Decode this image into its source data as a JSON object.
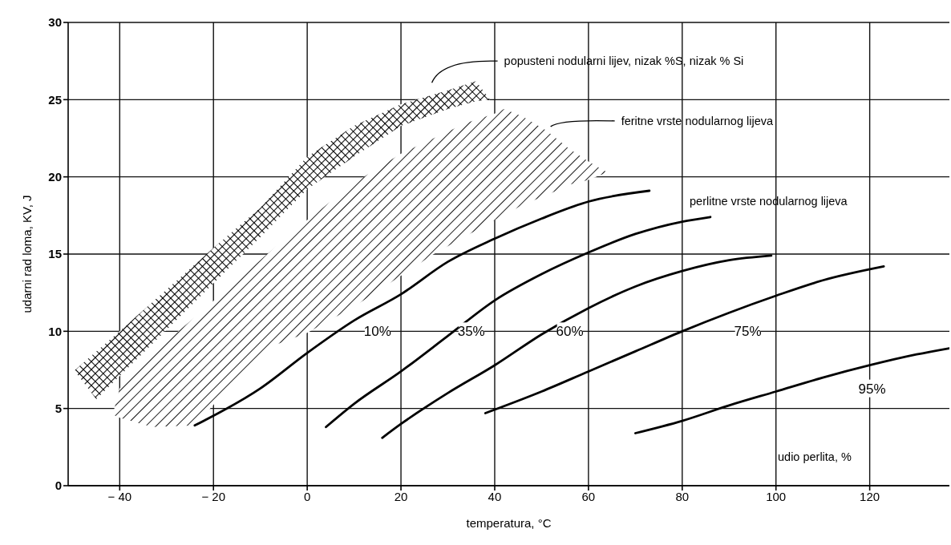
{
  "chart_data": {
    "type": "line",
    "xlabel": "temperatura, °C",
    "ylabel": "udarni rad loma, KV, J",
    "xlim": [
      -51,
      137
    ],
    "ylim": [
      0,
      30
    ],
    "xticks": [
      {
        "value": -40,
        "label": "− 40"
      },
      {
        "value": -20,
        "label": "− 20"
      },
      0,
      20,
      40,
      60,
      80,
      100,
      120
    ],
    "yticks": [
      0,
      5,
      10,
      15,
      20,
      25,
      30
    ],
    "grid": true,
    "marker": "none",
    "line_style": "solid",
    "series": [
      {
        "type": "area",
        "name": "popusteni nodularni lijev, nizak %S, nizak % Si",
        "color": "#000000",
        "x": [
          -49.5,
          -45,
          -40,
          -30,
          -20,
          -10,
          0,
          10,
          20,
          30,
          36,
          39
        ],
        "values": [
          null,
          null,
          null,
          null,
          null,
          null,
          null,
          null,
          null,
          null,
          null,
          null
        ],
        "upper": [
          7.5,
          8.7,
          10,
          12.7,
          15.4,
          18,
          21.3,
          23.3,
          24.7,
          25.6,
          26.2,
          25
        ],
        "lower": [
          7.4,
          5.6,
          7.1,
          10.1,
          13.1,
          16.1,
          19.2,
          21.3,
          23.3,
          24.4,
          24.9,
          25
        ]
      },
      {
        "type": "area",
        "name": "feritne vrste nodularnog lijeva",
        "color": "#000000",
        "x": [
          -41.5,
          -40,
          -33,
          -24,
          -15,
          -7,
          0,
          10,
          20,
          27,
          34,
          40,
          42,
          46,
          51,
          56,
          60,
          64
        ],
        "values": [
          null,
          null,
          null,
          null,
          null,
          null,
          null,
          null,
          null,
          null,
          null,
          null,
          null,
          null,
          null,
          null,
          null,
          null
        ],
        "upper": [
          4.6,
          6.3,
          8.6,
          10.9,
          13.3,
          15.4,
          17.2,
          19.6,
          21.5,
          22.5,
          23.5,
          24.1,
          24.4,
          23.9,
          23,
          21.8,
          21,
          20.3
        ],
        "lower": [
          4.6,
          4.4,
          3.8,
          3.9,
          6.9,
          9.1,
          9.9,
          11.6,
          13.6,
          15,
          16.2,
          17.2,
          17.5,
          18.2,
          18.8,
          19.5,
          19.8,
          20.3
        ]
      },
      {
        "color": "#000000",
        "x": [
          -24,
          -10,
          0,
          10,
          20,
          30,
          40,
          50,
          60,
          73
        ],
        "values": [
          3.9,
          6.3,
          8.6,
          10.7,
          12.4,
          14.5,
          16,
          17.3,
          18.4,
          19.1
        ]
      },
      {
        "color": "#000000",
        "x": [
          4,
          10,
          20,
          30,
          40,
          50,
          60,
          70,
          80,
          86
        ],
        "values": [
          3.8,
          5.3,
          7.4,
          9.7,
          12,
          13.7,
          15.1,
          16.3,
          17.1,
          17.4
        ]
      },
      {
        "color": "#000000",
        "x": [
          16,
          20,
          30,
          40,
          50,
          60,
          70,
          80,
          90,
          99
        ],
        "values": [
          3.1,
          4,
          6,
          7.8,
          9.8,
          11.5,
          12.9,
          13.9,
          14.6,
          14.9
        ]
      },
      {
        "color": "#000000",
        "x": [
          38,
          50,
          60,
          70,
          80,
          90,
          100,
          110,
          123
        ],
        "values": [
          4.7,
          6.1,
          7.4,
          8.7,
          10,
          11.2,
          12.3,
          13.3,
          14.2
        ]
      },
      {
        "color": "#000000",
        "x": [
          70,
          80,
          90,
          100,
          110,
          120,
          130,
          137
        ],
        "values": [
          3.4,
          4.2,
          5.2,
          6.1,
          7,
          7.8,
          8.5,
          8.9
        ]
      }
    ],
    "annotations": [
      {
        "text": "10%",
        "x": 15,
        "y": 10
      },
      {
        "text": "35%",
        "x": 35,
        "y": 10
      },
      {
        "text": "60%",
        "x": 56,
        "y": 10
      },
      {
        "text": "75%",
        "x": 94,
        "y": 10
      },
      {
        "text": "95%",
        "x": 120.5,
        "y": 6.3
      },
      "perlitne vrste nodularnog lijeva",
      "udio perlita, %"
    ]
  }
}
